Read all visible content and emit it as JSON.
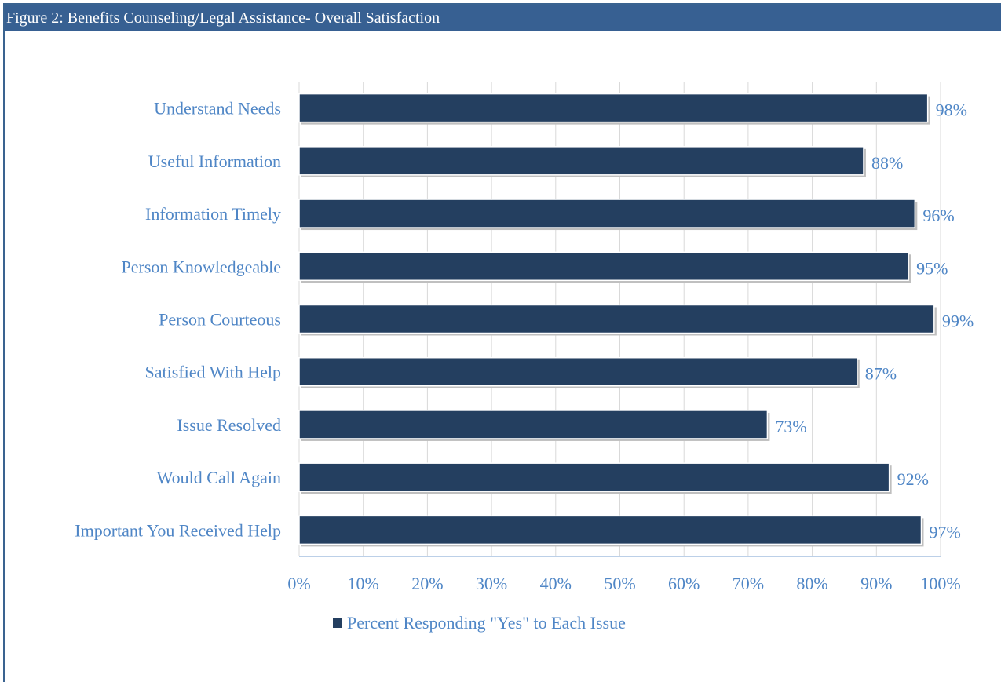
{
  "figure_title": "Figure 2: Benefits Counseling/Legal Assistance- Overall Satisfaction",
  "colors": {
    "bar": "#243f60",
    "text": "#4f86c6",
    "title_bg": "#376092",
    "grid": "#d9d9d9",
    "axis": "#a6c1e0"
  },
  "chart_data": {
    "type": "bar",
    "orientation": "horizontal",
    "categories": [
      "Understand Needs",
      "Useful Information",
      "Information Timely",
      "Person Knowledgeable",
      "Person Courteous",
      "Satisfied With Help",
      "Issue Resolved",
      "Would Call Again",
      "Important You Received Help"
    ],
    "series": [
      {
        "name": "Percent Responding \"Yes\" to Each Issue",
        "values": [
          0.98,
          0.88,
          0.96,
          0.95,
          0.99,
          0.87,
          0.73,
          0.92,
          0.97
        ]
      }
    ],
    "data_labels": [
      "98%",
      "88%",
      "96%",
      "95%",
      "99%",
      "87%",
      "73%",
      "92%",
      "97%"
    ],
    "xlim": [
      0,
      1
    ],
    "xticks": [
      "0%",
      "10%",
      "20%",
      "30%",
      "40%",
      "50%",
      "60%",
      "70%",
      "80%",
      "90%",
      "100%"
    ],
    "grid": true,
    "legend": "bottom"
  }
}
